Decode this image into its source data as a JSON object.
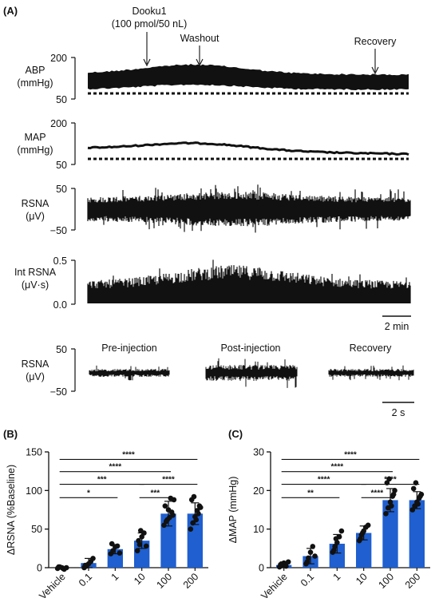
{
  "figure": {
    "panel_a_label": "(A)",
    "panel_b_label": "(B)",
    "panel_c_label": "(C)",
    "annotations": {
      "injection_line1": "Dooku1",
      "injection_line2": "(100 pmol/50 nL)",
      "washout": "Washout",
      "recovery": "Recovery"
    },
    "traces": [
      {
        "id": "abp",
        "label_lines": [
          "ABP",
          "(mmHg)"
        ],
        "ticks": [
          "200",
          "50"
        ]
      },
      {
        "id": "map",
        "label_lines": [
          "MAP",
          "(mmHg)"
        ],
        "ticks": [
          "200",
          "50"
        ]
      },
      {
        "id": "rsna",
        "label_lines": [
          "RSNA",
          "(μV)"
        ],
        "ticks": [
          "50",
          "−50"
        ]
      },
      {
        "id": "int_rsna",
        "label_lines": [
          "Int RSNA",
          "(μV·s)"
        ],
        "ticks": [
          "0.5",
          "0.0"
        ]
      }
    ],
    "time_scale_a": "2 min",
    "short_trace": {
      "label_lines": [
        "RSNA",
        "(μV)"
      ],
      "ticks": [
        "50",
        "−50"
      ],
      "segments": [
        "Pre-injection",
        "Post-injection",
        "Recovery"
      ],
      "time_scale": "2 s"
    }
  },
  "chart_data": [
    {
      "type": "bar",
      "panel": "B",
      "ylabel": "ΔRSNA (%Baseline)",
      "categories": [
        "Vehicle",
        "0.1",
        "1",
        "10",
        "100",
        "200"
      ],
      "values": [
        0,
        6,
        24,
        35,
        70,
        70
      ],
      "errors": [
        1,
        6,
        6,
        10,
        16,
        14
      ],
      "points": [
        [
          -1,
          1,
          0,
          -2,
          0,
          1
        ],
        [
          0,
          2,
          5,
          8,
          12,
          3
        ],
        [
          18,
          22,
          27,
          28,
          19,
          31
        ],
        [
          22,
          30,
          40,
          45,
          28,
          35,
          48
        ],
        [
          55,
          60,
          75,
          90,
          68,
          80,
          62,
          65,
          72,
          88
        ],
        [
          50,
          58,
          66,
          74,
          80,
          88,
          92,
          62,
          70,
          78
        ]
      ],
      "ylim": [
        0,
        150
      ],
      "yticks": [
        0,
        50,
        100,
        150
      ],
      "color": "#1f5fcf",
      "significance": [
        {
          "from": 0,
          "to": 2,
          "label": "*"
        },
        {
          "from": 0,
          "to": 3,
          "label": "***"
        },
        {
          "from": 0,
          "to": 4,
          "label": "****"
        },
        {
          "from": 0,
          "to": 5,
          "label": "****"
        },
        {
          "from": 3,
          "to": 4,
          "label": "***"
        },
        {
          "from": 3,
          "to": 5,
          "label": "****"
        }
      ]
    },
    {
      "type": "bar",
      "panel": "C",
      "ylabel": "ΔMAP (mmHg)",
      "categories": [
        "Vehicle",
        "0.1",
        "1",
        "10",
        "100",
        "200"
      ],
      "values": [
        0.7,
        3,
        6.2,
        9,
        17.5,
        17.5
      ],
      "errors": [
        0.8,
        2,
        2.4,
        1.8,
        3,
        2.2
      ],
      "points": [
        [
          0.2,
          0.5,
          1.2,
          0.4,
          1.5,
          0.8
        ],
        [
          1.0,
          2.5,
          4.0,
          5.5,
          3.0,
          1.5
        ],
        [
          4.0,
          5.5,
          6.5,
          8.0,
          9.5,
          4.5,
          7.5
        ],
        [
          7.0,
          8.5,
          9.5,
          10.5,
          11.0,
          7.5,
          9.0
        ],
        [
          14.0,
          15.5,
          17.0,
          18.5,
          20.0,
          22.0,
          23.0,
          16.0,
          19.0
        ],
        [
          15.0,
          16.0,
          17.0,
          18.0,
          19.0,
          20.5,
          22.0,
          16.5,
          18.5
        ]
      ],
      "ylim": [
        0,
        30
      ],
      "yticks": [
        0,
        10,
        20,
        30
      ],
      "color": "#1f5fcf",
      "significance": [
        {
          "from": 0,
          "to": 2,
          "label": "**"
        },
        {
          "from": 0,
          "to": 3,
          "label": "****"
        },
        {
          "from": 0,
          "to": 4,
          "label": "****"
        },
        {
          "from": 0,
          "to": 5,
          "label": "****"
        },
        {
          "from": 3,
          "to": 4,
          "label": "****"
        },
        {
          "from": 3,
          "to": 5,
          "label": "****"
        }
      ]
    }
  ]
}
